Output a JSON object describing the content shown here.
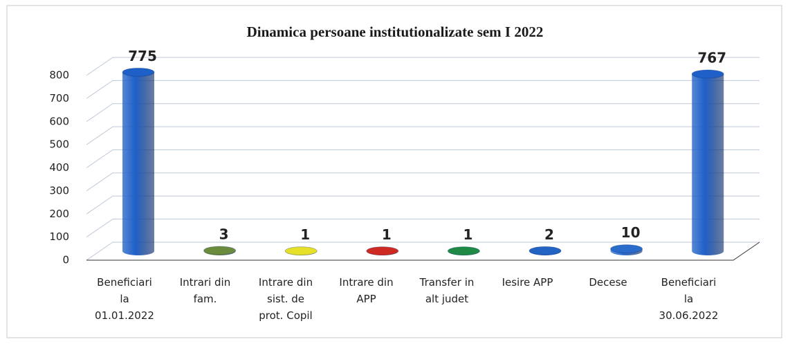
{
  "chart_data": {
    "type": "bar",
    "title": "Dinamica persoane institutionalizate sem I 2022",
    "categories": [
      "Beneficiari\nla\n01.01.2022",
      "Intrari din\nfam.",
      "Intrare din\nsist. de\nprot. Copil",
      "Intrare din\nAPP",
      "Transfer in\nalt judet",
      "Iesire APP",
      "Decese",
      "Beneficiari\nla\n30.06.2022"
    ],
    "values": [
      775,
      3,
      1,
      1,
      1,
      2,
      10,
      767
    ],
    "colors": [
      "#1f60c8",
      "#6b8c3c",
      "#e6e028",
      "#cf2a22",
      "#1f8a45",
      "#2363c4",
      "#2a6ccc",
      "#1f60c8"
    ],
    "ylim": [
      0,
      800
    ],
    "yticks": [
      0,
      100,
      200,
      300,
      400,
      500,
      600,
      700,
      800
    ],
    "grid": true
  }
}
